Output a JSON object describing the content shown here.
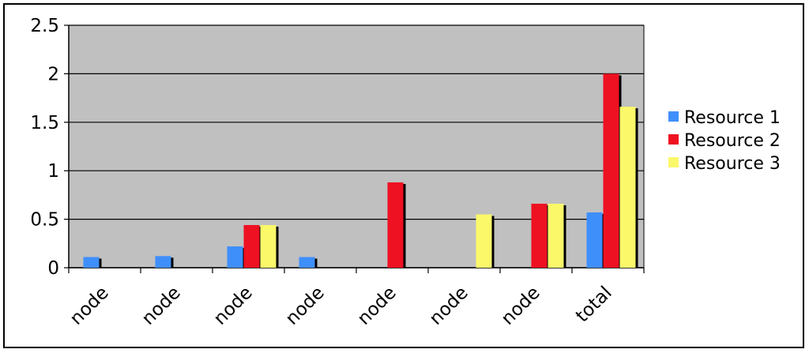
{
  "chart_data": {
    "type": "bar",
    "categories": [
      "node",
      "node",
      "node",
      "node",
      "node",
      "node",
      "node",
      "total"
    ],
    "series": [
      {
        "name": "Resource 1",
        "color": "#3f8ffb",
        "values": [
          0.11,
          0.12,
          0.22,
          0.11,
          0,
          0,
          0,
          0.57
        ]
      },
      {
        "name": "Resource 2",
        "color": "#ee1122",
        "values": [
          0,
          0,
          0.44,
          0,
          0.88,
          0,
          0.66,
          2.0
        ]
      },
      {
        "name": "Resource 3",
        "color": "#fbf86a",
        "values": [
          0,
          0,
          0.44,
          0,
          0,
          0.55,
          0.66,
          1.66
        ]
      }
    ],
    "ylim": [
      0,
      2.5
    ],
    "yticks": [
      "0",
      "0.5",
      "1",
      "1.5",
      "2",
      "2.5"
    ],
    "grid": true,
    "plot_background": "#c0c0c0",
    "legend_position": "right"
  }
}
